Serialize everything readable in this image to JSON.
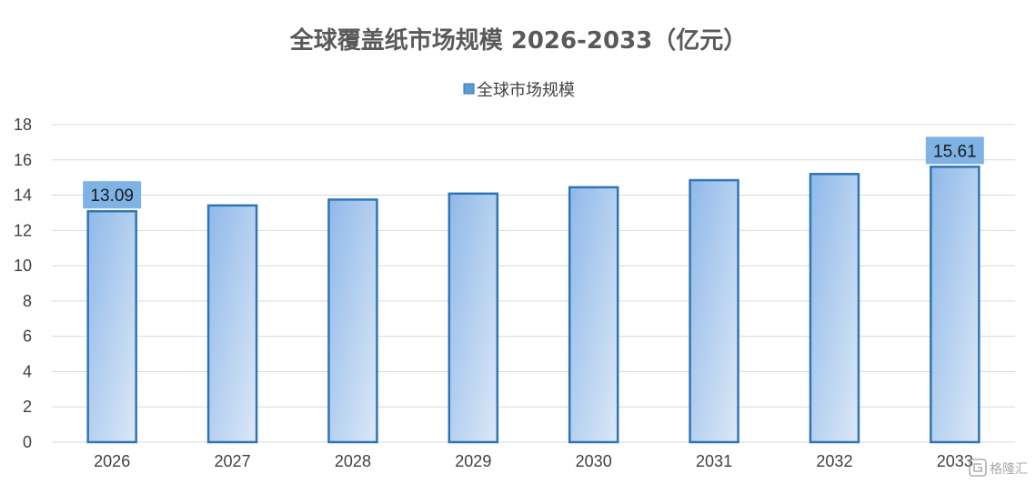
{
  "chart_data": {
    "type": "bar",
    "title": "全球覆盖纸市场规模 2026-2033（亿元）",
    "categories": [
      "2026",
      "2027",
      "2028",
      "2029",
      "2030",
      "2031",
      "2032",
      "2033"
    ],
    "series": [
      {
        "name": "全球市场规模",
        "values": [
          13.09,
          13.42,
          13.75,
          14.09,
          14.45,
          14.85,
          15.2,
          15.61
        ]
      }
    ],
    "data_labels": [
      {
        "category": "2026",
        "text": "13.09"
      },
      {
        "category": "2033",
        "text": "15.61"
      }
    ],
    "ylim": [
      0,
      18
    ],
    "yticks": [
      "0",
      "2",
      "4",
      "6",
      "8",
      "10",
      "12",
      "14",
      "16",
      "18"
    ],
    "xlabel": "",
    "ylabel": "",
    "grid": true,
    "legend_position": "top",
    "colors": {
      "bar_fill_dark": "#8fb9e9",
      "bar_fill_light": "#dce8f7",
      "bar_stroke": "#2e75b6",
      "label_bg": "#7fb2e5",
      "grid": "#d9d9d9",
      "legend_marker": "#5b9bd5"
    }
  },
  "watermark": {
    "text": "格隆汇",
    "icon": "glh-logo-icon"
  }
}
